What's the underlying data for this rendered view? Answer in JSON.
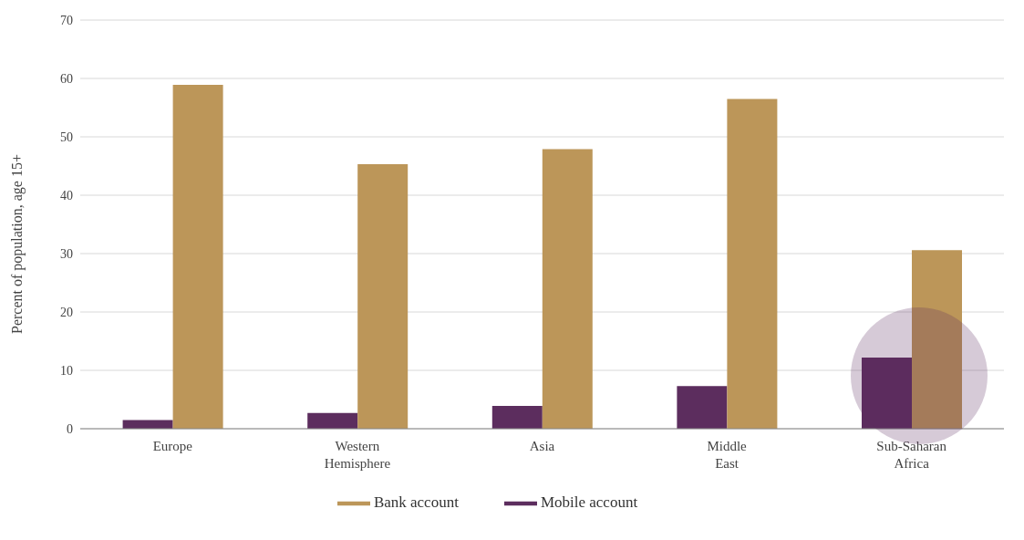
{
  "chart_data": {
    "type": "bar",
    "ylabel": "Percent of population, age 15+",
    "categories": [
      "Europe",
      "Western Hemisphere",
      "Asia",
      "Middle East",
      "Sub-Saharan Africa"
    ],
    "series": [
      {
        "name": "Mobile account",
        "color": "#5c2d5e",
        "values": [
          1.5,
          2.7,
          3.9,
          7.3,
          12.2
        ]
      },
      {
        "name": "Bank account",
        "color": "#bc9659",
        "values": [
          58.9,
          45.3,
          47.9,
          56.5,
          30.6
        ]
      }
    ],
    "ylim": [
      0,
      70
    ],
    "yticks": [
      0,
      10,
      20,
      30,
      40,
      50,
      60,
      70
    ],
    "grid": "y",
    "legend": "bottom"
  }
}
